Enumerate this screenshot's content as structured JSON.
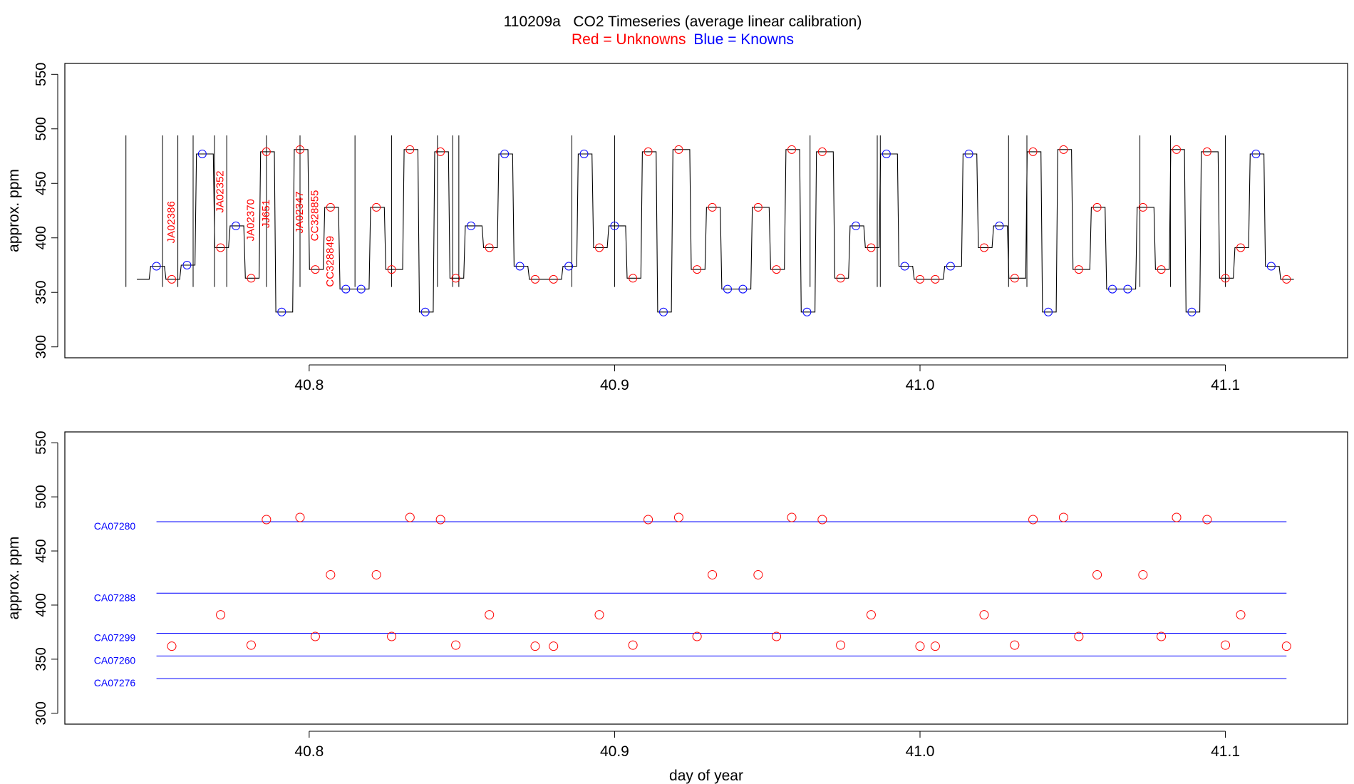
{
  "title": "110209a   CO2 Timeseries (average linear calibration)",
  "subtitle": {
    "red_text": "Red = Unknowns",
    "blue_text": "Blue = Knowns"
  },
  "colors": {
    "unknown": "#ff0000",
    "known": "#0000ff",
    "trace": "#000000",
    "axis": "#000000"
  },
  "chart_data": [
    {
      "type": "line",
      "panel": "top",
      "ylabel": "approx. ppm",
      "xlabel": "",
      "xlim": [
        40.72,
        41.14
      ],
      "ylim": [
        290,
        560
      ],
      "x_ticks": [
        40.8,
        40.9,
        41.0,
        41.1
      ],
      "x_tick_labels": [
        "40.8",
        "40.9",
        "41.0",
        "41.1"
      ],
      "y_ticks": [
        300,
        350,
        400,
        450,
        500,
        550
      ],
      "y_tick_labels": [
        "300",
        "350",
        "400",
        "450",
        "500",
        "550"
      ],
      "segments": [
        {
          "x": 40.75,
          "v": 374,
          "kind": "known"
        },
        {
          "x": 40.755,
          "v": 362,
          "kind": "unknown"
        },
        {
          "x": 40.76,
          "v": 375,
          "kind": "known"
        },
        {
          "x": 40.765,
          "v": 477,
          "kind": "known"
        },
        {
          "x": 40.771,
          "v": 391,
          "kind": "unknown"
        },
        {
          "x": 40.776,
          "v": 411,
          "kind": "known"
        },
        {
          "x": 40.781,
          "v": 363,
          "kind": "unknown"
        },
        {
          "x": 40.786,
          "v": 479,
          "kind": "unknown"
        },
        {
          "x": 40.791,
          "v": 332,
          "kind": "known"
        },
        {
          "x": 40.797,
          "v": 481,
          "kind": "unknown"
        },
        {
          "x": 40.802,
          "v": 371,
          "kind": "unknown"
        },
        {
          "x": 40.807,
          "v": 428,
          "kind": "unknown"
        },
        {
          "x": 40.812,
          "v": 353,
          "kind": "known"
        },
        {
          "x": 40.817,
          "v": 353,
          "kind": "known"
        },
        {
          "x": 40.822,
          "v": 428,
          "kind": "unknown"
        },
        {
          "x": 40.827,
          "v": 371,
          "kind": "unknown"
        },
        {
          "x": 40.833,
          "v": 481,
          "kind": "unknown"
        },
        {
          "x": 40.838,
          "v": 332,
          "kind": "known"
        },
        {
          "x": 40.843,
          "v": 479,
          "kind": "unknown"
        },
        {
          "x": 40.848,
          "v": 363,
          "kind": "unknown"
        },
        {
          "x": 40.853,
          "v": 411,
          "kind": "known"
        },
        {
          "x": 40.859,
          "v": 391,
          "kind": "unknown"
        },
        {
          "x": 40.864,
          "v": 477,
          "kind": "known"
        },
        {
          "x": 40.869,
          "v": 374,
          "kind": "known"
        },
        {
          "x": 40.874,
          "v": 362,
          "kind": "unknown"
        },
        {
          "x": 40.88,
          "v": 362,
          "kind": "unknown"
        },
        {
          "x": 40.885,
          "v": 374,
          "kind": "known"
        },
        {
          "x": 40.89,
          "v": 477,
          "kind": "known"
        },
        {
          "x": 40.895,
          "v": 391,
          "kind": "unknown"
        },
        {
          "x": 40.9,
          "v": 411,
          "kind": "known"
        },
        {
          "x": 40.906,
          "v": 363,
          "kind": "unknown"
        },
        {
          "x": 40.911,
          "v": 479,
          "kind": "unknown"
        },
        {
          "x": 40.916,
          "v": 332,
          "kind": "known"
        },
        {
          "x": 40.921,
          "v": 481,
          "kind": "unknown"
        },
        {
          "x": 40.927,
          "v": 371,
          "kind": "unknown"
        },
        {
          "x": 40.932,
          "v": 428,
          "kind": "unknown"
        },
        {
          "x": 40.937,
          "v": 353,
          "kind": "known"
        },
        {
          "x": 40.942,
          "v": 353,
          "kind": "known"
        },
        {
          "x": 40.947,
          "v": 428,
          "kind": "unknown"
        },
        {
          "x": 40.953,
          "v": 371,
          "kind": "unknown"
        },
        {
          "x": 40.958,
          "v": 481,
          "kind": "unknown"
        },
        {
          "x": 40.963,
          "v": 332,
          "kind": "known"
        },
        {
          "x": 40.968,
          "v": 479,
          "kind": "unknown"
        },
        {
          "x": 40.974,
          "v": 363,
          "kind": "unknown"
        },
        {
          "x": 40.979,
          "v": 411,
          "kind": "known"
        },
        {
          "x": 40.984,
          "v": 391,
          "kind": "unknown"
        },
        {
          "x": 40.989,
          "v": 477,
          "kind": "known"
        },
        {
          "x": 40.995,
          "v": 374,
          "kind": "known"
        },
        {
          "x": 41.0,
          "v": 362,
          "kind": "unknown"
        },
        {
          "x": 41.005,
          "v": 362,
          "kind": "unknown"
        },
        {
          "x": 41.01,
          "v": 374,
          "kind": "known"
        },
        {
          "x": 41.016,
          "v": 477,
          "kind": "known"
        },
        {
          "x": 41.021,
          "v": 391,
          "kind": "unknown"
        },
        {
          "x": 41.026,
          "v": 411,
          "kind": "known"
        },
        {
          "x": 41.031,
          "v": 363,
          "kind": "unknown"
        },
        {
          "x": 41.037,
          "v": 479,
          "kind": "unknown"
        },
        {
          "x": 41.042,
          "v": 332,
          "kind": "known"
        },
        {
          "x": 41.047,
          "v": 481,
          "kind": "unknown"
        },
        {
          "x": 41.052,
          "v": 371,
          "kind": "unknown"
        },
        {
          "x": 41.058,
          "v": 428,
          "kind": "unknown"
        },
        {
          "x": 41.063,
          "v": 353,
          "kind": "known"
        },
        {
          "x": 41.068,
          "v": 353,
          "kind": "known"
        },
        {
          "x": 41.073,
          "v": 428,
          "kind": "unknown"
        },
        {
          "x": 41.079,
          "v": 371,
          "kind": "unknown"
        },
        {
          "x": 41.084,
          "v": 481,
          "kind": "unknown"
        },
        {
          "x": 41.089,
          "v": 332,
          "kind": "known"
        },
        {
          "x": 41.094,
          "v": 479,
          "kind": "unknown"
        },
        {
          "x": 41.1,
          "v": 363,
          "kind": "unknown"
        },
        {
          "x": 41.105,
          "v": 391,
          "kind": "unknown"
        },
        {
          "x": 41.11,
          "v": 477,
          "kind": "known"
        },
        {
          "x": 41.115,
          "v": 374,
          "kind": "known"
        },
        {
          "x": 41.12,
          "v": 362,
          "kind": "unknown"
        }
      ],
      "spikes": [
        40.74,
        40.752,
        40.757,
        40.762,
        40.769,
        40.773,
        40.786,
        40.797,
        40.815,
        40.827,
        40.842,
        40.847,
        40.849,
        40.886,
        40.9,
        40.964,
        40.986,
        40.987,
        41.029,
        41.035,
        41.072,
        41.082,
        41.1
      ],
      "spike_top": 494,
      "annotations": [
        {
          "text": "JA02386",
          "x": 40.755,
          "y": 395
        },
        {
          "text": "JA02352",
          "x": 40.771,
          "y": 423
        },
        {
          "text": "JA02370",
          "x": 40.781,
          "y": 397
        },
        {
          "text": "JJ651",
          "x": 40.786,
          "y": 409
        },
        {
          "text": "JA02347",
          "x": 40.797,
          "y": 404
        },
        {
          "text": "CC328855",
          "x": 40.802,
          "y": 397
        },
        {
          "text": "CC328849",
          "x": 40.807,
          "y": 355
        }
      ]
    },
    {
      "type": "scatter",
      "panel": "bottom",
      "ylabel": "approx. ppm",
      "xlabel": "day of year",
      "xlim": [
        40.72,
        41.14
      ],
      "ylim": [
        290,
        560
      ],
      "x_ticks": [
        40.8,
        40.9,
        41.0,
        41.1
      ],
      "x_tick_labels": [
        "40.8",
        "40.9",
        "41.0",
        "41.1"
      ],
      "y_ticks": [
        300,
        350,
        400,
        450,
        500,
        550
      ],
      "y_tick_labels": [
        "300",
        "350",
        "400",
        "450",
        "500",
        "550"
      ],
      "standards": [
        {
          "name": "CA07280",
          "value": 477
        },
        {
          "name": "CA07288",
          "value": 411
        },
        {
          "name": "CA07299",
          "value": 374
        },
        {
          "name": "CA07260",
          "value": 353
        },
        {
          "name": "CA07276",
          "value": 332
        }
      ],
      "standards_x_range": [
        40.75,
        41.12
      ],
      "points_x": [
        40.755,
        40.771,
        40.781,
        40.786,
        40.797,
        40.802,
        40.807,
        40.822,
        40.827,
        40.833,
        40.843,
        40.848,
        40.859,
        40.874,
        40.88,
        40.895,
        40.906,
        40.911,
        40.921,
        40.927,
        40.932,
        40.947,
        40.953,
        40.958,
        40.968,
        40.974,
        40.984,
        41.0,
        41.005,
        41.021,
        41.031,
        41.037,
        41.047,
        41.052,
        41.058,
        41.073,
        41.079,
        41.084,
        41.094,
        41.1,
        41.105,
        41.12
      ],
      "points_y": [
        362,
        391,
        363,
        479,
        481,
        371,
        428,
        428,
        371,
        481,
        479,
        363,
        391,
        362,
        362,
        391,
        363,
        479,
        481,
        371,
        428,
        428,
        371,
        481,
        479,
        363,
        391,
        362,
        362,
        391,
        363,
        479,
        481,
        371,
        428,
        428,
        371,
        481,
        479,
        363,
        391,
        362
      ]
    }
  ]
}
